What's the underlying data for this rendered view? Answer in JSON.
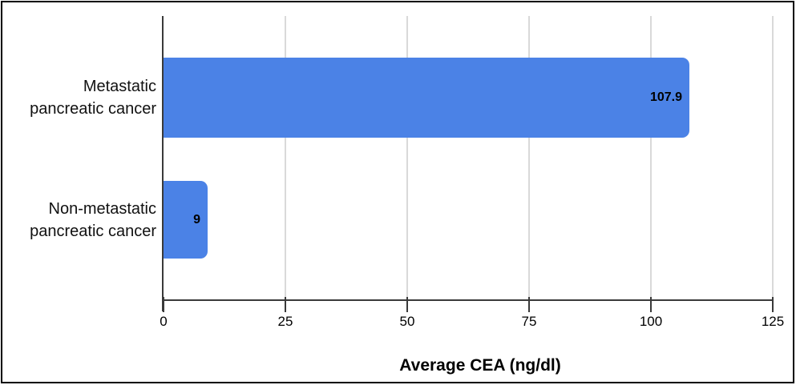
{
  "chart_data": {
    "type": "bar",
    "orientation": "horizontal",
    "title": "",
    "xlabel": "Average CEA (ng/dl)",
    "ylabel": "",
    "categories": [
      "Metastatic pancreatic cancer",
      "Non-metastatic pancreatic cancer"
    ],
    "category_lines": [
      [
        "Metastatic",
        "pancreatic cancer"
      ],
      [
        "Non-metastatic",
        "pancreatic cancer"
      ]
    ],
    "values": [
      107.9,
      9
    ],
    "value_labels": [
      "107.9",
      "9"
    ],
    "xlim": [
      0,
      125
    ],
    "xticks": [
      0,
      25,
      50,
      75,
      100,
      125
    ],
    "grid": true,
    "legend": "none",
    "colors": {
      "bar": "#4b82e6",
      "gridline": "#d9d9d9",
      "axis": "#3a3a3a",
      "text": "#000000",
      "frame_border": "#000000",
      "background": "#ffffff"
    }
  }
}
